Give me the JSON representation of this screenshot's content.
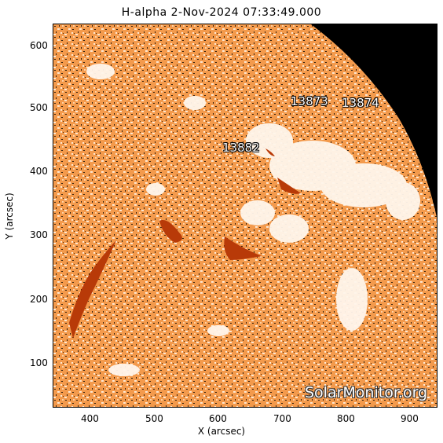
{
  "title": "H-alpha   2-Nov-2024 07:33:49.000",
  "axes": {
    "xlabel": "X (arcsec)",
    "ylabel": "Y (arcsec)",
    "xticks": [
      "400",
      "500",
      "600",
      "700",
      "800",
      "900"
    ],
    "yticks": [
      "600",
      "500",
      "400",
      "300",
      "200",
      "100"
    ]
  },
  "regions": [
    "13873",
    "13874",
    "13882"
  ],
  "watermark": "SolarMonitor.org",
  "colors": {
    "background": "#f5a35c",
    "plage": "#fff3e6",
    "filament": "#b83a08",
    "space": "#000000"
  }
}
